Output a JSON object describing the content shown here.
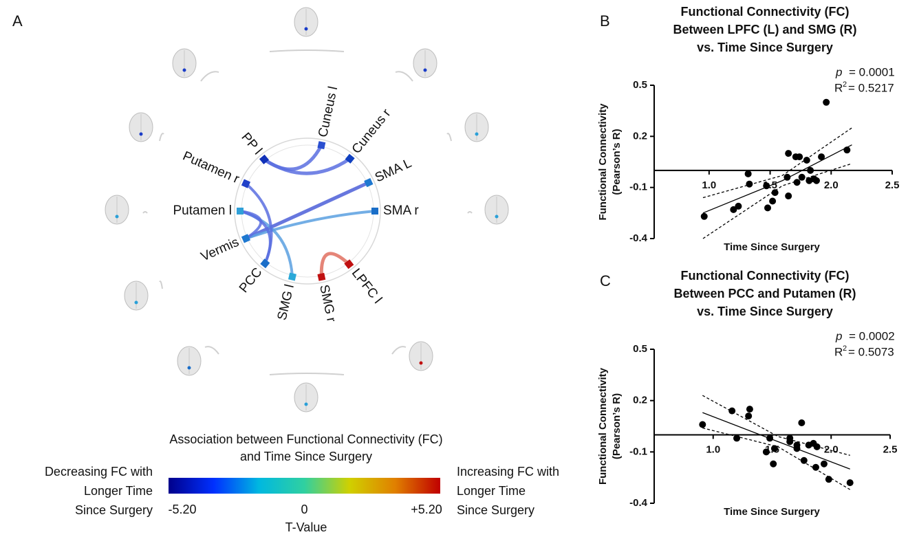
{
  "chart_data": [
    {
      "type": "chord",
      "panel": "A",
      "nodes": [
        {
          "label": "Cuneus l",
          "color": "#2a4fd0"
        },
        {
          "label": "Cuneus r",
          "color": "#1040c0"
        },
        {
          "label": "SMA L",
          "color": "#1e78d0"
        },
        {
          "label": "SMA r",
          "color": "#1a6ec8"
        },
        {
          "label": "LPFC l",
          "color": "#c01010"
        },
        {
          "label": "SMG r",
          "color": "#c01010"
        },
        {
          "label": "SMG l",
          "color": "#2aa8d8"
        },
        {
          "label": "PCC",
          "color": "#1a6ec8"
        },
        {
          "label": "Vermis",
          "color": "#1e78d0"
        },
        {
          "label": "Putamen l",
          "color": "#30a0d8"
        },
        {
          "label": "Putamen r",
          "color": "#2040c8"
        },
        {
          "label": "PP l",
          "color": "#1030b8"
        }
      ],
      "colorbar": {
        "title": [
          "Association between Functional Connectivity (FC)",
          "and Time Since Surgery"
        ],
        "left_text": [
          "Decreasing FC with",
          "Longer Time",
          "Since Surgery"
        ],
        "right_text": [
          "Increasing FC with",
          "Longer Time",
          "Since Surgery"
        ],
        "label": "T-Value",
        "lim": [
          -5.2,
          5.2
        ],
        "ticks": [
          {
            "value": -5.2,
            "label": "-5.20"
          },
          0,
          {
            "value": 5.2,
            "label": "+5.20"
          }
        ],
        "colors": [
          "#00008b",
          "#0030ff",
          "#00b8e0",
          "#30d0a0",
          "#d0d000",
          "#e08000",
          "#c00000"
        ]
      }
    },
    {
      "type": "scatter",
      "panel": "B",
      "title": [
        "Functional Connectivity (FC)",
        "Between LPFC (L) and SMG (R)",
        "vs. Time Since Surgery"
      ],
      "x_label": "Time Since Surgery",
      "y_label": [
        "Functional Connectivity",
        "(Pearson’s R)"
      ],
      "stats": {
        "p_symbol": "p",
        "p_value": "= 0.0001",
        "r2_symbol": "R",
        "r2_power": "2",
        "r2_value": "= 0.5217"
      },
      "xlim": [
        0.55,
        2.5
      ],
      "ylim": [
        -0.4,
        0.5
      ],
      "xticks": [
        {
          "value": 1,
          "label": "1.0"
        },
        1.5,
        {
          "value": 2,
          "label": "2.0"
        },
        2.5
      ],
      "yticks": [
        -0.4,
        -0.1,
        0.2,
        0.5
      ],
      "color": "#000000",
      "x": [
        0.96,
        1.2,
        1.24,
        1.32,
        1.33,
        1.47,
        1.48,
        1.52,
        1.54,
        1.64,
        1.65,
        1.65,
        1.71,
        1.74,
        1.72,
        1.76,
        1.8,
        1.83,
        1.82,
        1.86,
        1.88,
        1.92,
        1.96,
        2.13
      ],
      "y": [
        -0.27,
        -0.23,
        -0.21,
        -0.02,
        -0.08,
        -0.09,
        -0.22,
        -0.18,
        -0.13,
        -0.04,
        0.1,
        -0.15,
        0.08,
        0.08,
        -0.07,
        -0.04,
        0.06,
        0.0,
        -0.06,
        -0.05,
        -0.06,
        0.08,
        0.4,
        0.12
      ],
      "fit": {
        "x": [
          0.95,
          1.6,
          2.17
        ],
        "y": [
          -0.25,
          -0.06,
          0.15
        ],
        "upper": [
          -0.16,
          -0.03,
          0.25
        ],
        "lower": [
          -0.4,
          -0.09,
          0.04
        ]
      }
    },
    {
      "type": "scatter",
      "panel": "C",
      "title": [
        "Functional Connectivity (FC)",
        "Between PCC and Putamen (R)",
        "vs. Time Since Surgery"
      ],
      "x_label": "Time Since Surgery",
      "y_label": [
        "Functional Connectivity",
        "(Pearson’s R)"
      ],
      "stats": {
        "p_symbol": "p",
        "p_value": "= 0.0002",
        "r2_symbol": "R",
        "r2_power": "2",
        "r2_value": "= 0.5073"
      },
      "xlim": [
        0.5,
        2.5
      ],
      "ylim": [
        -0.4,
        0.5
      ],
      "xticks": [
        {
          "value": 1,
          "label": "1.0"
        },
        1.5,
        {
          "value": 2,
          "label": "2.0"
        },
        2.5
      ],
      "yticks": [
        -0.4,
        -0.1,
        0.2,
        0.5
      ],
      "color": "#000000",
      "x": [
        0.91,
        1.16,
        1.2,
        1.3,
        1.31,
        1.48,
        1.45,
        1.52,
        1.51,
        1.65,
        1.65,
        1.71,
        1.71,
        1.75,
        1.77,
        1.81,
        1.85,
        1.88,
        1.87,
        1.94,
        1.98,
        2.16
      ],
      "y": [
        0.06,
        0.14,
        -0.02,
        0.11,
        0.15,
        -0.02,
        -0.1,
        -0.08,
        -0.17,
        -0.02,
        -0.04,
        -0.06,
        -0.08,
        0.07,
        -0.15,
        -0.06,
        -0.05,
        -0.07,
        -0.19,
        -0.17,
        -0.26,
        -0.28
      ],
      "fit": {
        "x": [
          0.91,
          1.55,
          2.16
        ],
        "y": [
          0.13,
          -0.04,
          -0.2
        ],
        "upper": [
          0.23,
          -0.01,
          -0.12
        ],
        "lower": [
          0.04,
          -0.07,
          -0.32
        ]
      }
    }
  ]
}
